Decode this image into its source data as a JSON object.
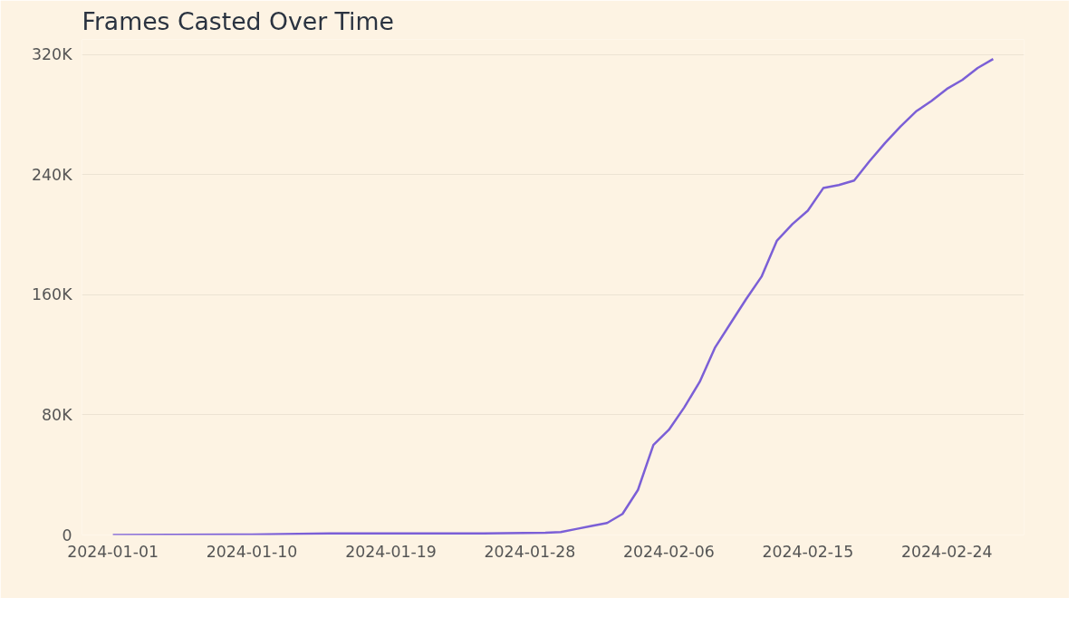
{
  "chart_data": {
    "type": "line",
    "title": "Frames Casted Over Time",
    "x": [
      "2024-01-01",
      "2024-01-10",
      "2024-01-15",
      "2024-01-20",
      "2024-01-25",
      "2024-01-29",
      "2024-01-30",
      "2024-01-31",
      "2024-02-01",
      "2024-02-02",
      "2024-02-03",
      "2024-02-04",
      "2024-02-05",
      "2024-02-06",
      "2024-02-07",
      "2024-02-08",
      "2024-02-09",
      "2024-02-10",
      "2024-02-11",
      "2024-02-12",
      "2024-02-13",
      "2024-02-14",
      "2024-02-15",
      "2024-02-16",
      "2024-02-17",
      "2024-02-18",
      "2024-02-19",
      "2024-02-20",
      "2024-02-21",
      "2024-02-22",
      "2024-02-23",
      "2024-02-24",
      "2024-02-25",
      "2024-02-26",
      "2024-02-27"
    ],
    "series": [
      {
        "color": "#7b5fd6",
        "values": [
          0,
          300,
          1000,
          1000,
          1000,
          1500,
          2000,
          4000,
          6000,
          8000,
          14000,
          30000,
          60000,
          70000,
          85000,
          102000,
          125000,
          141000,
          157000,
          172000,
          196000,
          207000,
          216000,
          231000,
          233000,
          236000,
          249000,
          261000,
          272000,
          282000,
          289000,
          297000,
          303000,
          311000,
          317000
        ]
      }
    ],
    "xlim": [
      "2023-12-30",
      "2024-02-29"
    ],
    "xticks": [
      "2024-01-01",
      "2024-01-10",
      "2024-01-19",
      "2024-01-28",
      "2024-02-06",
      "2024-02-15",
      "2024-02-24"
    ],
    "ylim": [
      0,
      330000
    ],
    "yticks": [
      {
        "value": 0,
        "label": "0"
      },
      {
        "value": 80000,
        "label": "80K"
      },
      {
        "value": 160000,
        "label": "160K"
      },
      {
        "value": 240000,
        "label": "240K"
      },
      {
        "value": 320000,
        "label": "320K"
      }
    ],
    "grid": "y",
    "marker": "none",
    "line_style": "solid"
  }
}
